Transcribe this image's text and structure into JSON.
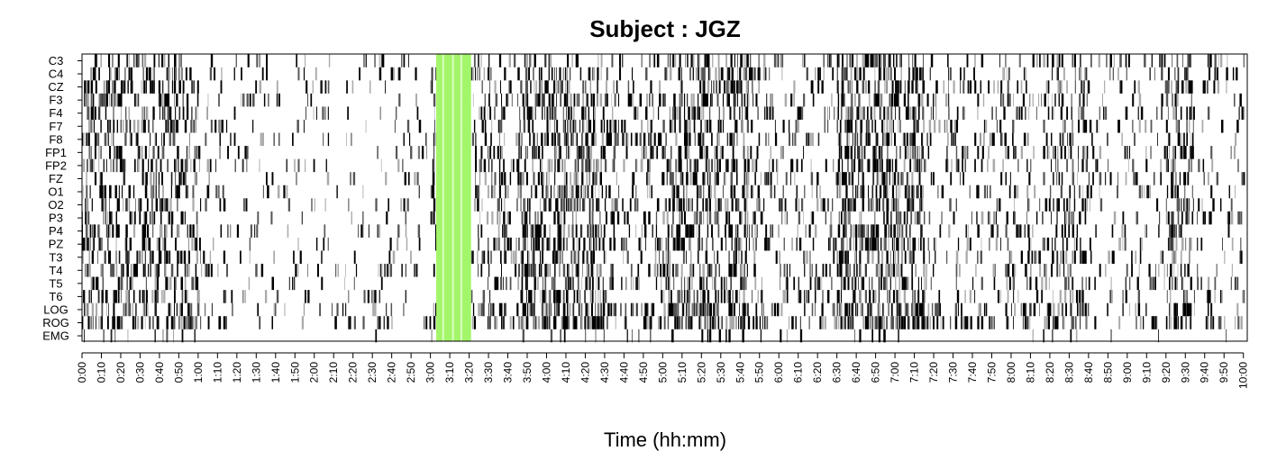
{
  "chart_data": {
    "type": "heatmap",
    "title": "Subject : JGZ",
    "xlabel": "Time (hh:mm)",
    "ylabel": "",
    "channels": [
      "C3",
      "C4",
      "CZ",
      "F3",
      "F4",
      "F7",
      "F8",
      "FP1",
      "FP2",
      "FZ",
      "O1",
      "O2",
      "P3",
      "P4",
      "PZ",
      "T3",
      "T4",
      "T5",
      "T6",
      "LOG",
      "ROG",
      "EMG"
    ],
    "x_tick_labels": [
      "0:00",
      "0:10",
      "0:20",
      "0:30",
      "0:40",
      "0:50",
      "1:00",
      "1:10",
      "1:20",
      "1:30",
      "1:40",
      "1:50",
      "2:00",
      "2:10",
      "2:20",
      "2:30",
      "2:40",
      "2:50",
      "3:00",
      "3:10",
      "3:20",
      "3:30",
      "3:40",
      "3:50",
      "4:00",
      "4:10",
      "4:20",
      "4:30",
      "4:40",
      "4:50",
      "5:00",
      "5:10",
      "5:20",
      "5:30",
      "5:40",
      "5:50",
      "6:00",
      "6:10",
      "6:20",
      "6:30",
      "6:40",
      "6:50",
      "7:00",
      "7:10",
      "7:20",
      "7:30",
      "7:40",
      "7:50",
      "8:00",
      "8:10",
      "8:20",
      "8:30",
      "8:40",
      "8:50",
      "9:00",
      "9:10",
      "9:20",
      "9:30",
      "9:40",
      "9:50",
      "10:00"
    ],
    "x_range_minutes": [
      0,
      602
    ],
    "highlight": {
      "start": "3:03",
      "end": "3:21",
      "color": "#a3f56a"
    },
    "event_color": "#000000",
    "activity_profile": [
      {
        "start": 0,
        "end": 60,
        "level": 0.45
      },
      {
        "start": 60,
        "end": 180,
        "level": 0.1
      },
      {
        "start": 180,
        "end": 183,
        "level": 0.35
      },
      {
        "start": 183,
        "end": 201,
        "level": 0.0
      },
      {
        "start": 201,
        "end": 225,
        "level": 0.28
      },
      {
        "start": 225,
        "end": 270,
        "level": 0.62
      },
      {
        "start": 270,
        "end": 300,
        "level": 0.3
      },
      {
        "start": 300,
        "end": 345,
        "level": 0.55
      },
      {
        "start": 345,
        "end": 390,
        "level": 0.25
      },
      {
        "start": 390,
        "end": 435,
        "level": 0.6
      },
      {
        "start": 435,
        "end": 500,
        "level": 0.22
      },
      {
        "start": 500,
        "end": 520,
        "level": 0.4
      },
      {
        "start": 520,
        "end": 560,
        "level": 0.18
      },
      {
        "start": 560,
        "end": 575,
        "level": 0.45
      },
      {
        "start": 575,
        "end": 602,
        "level": 0.15
      }
    ],
    "grid": false,
    "legend": "none"
  }
}
